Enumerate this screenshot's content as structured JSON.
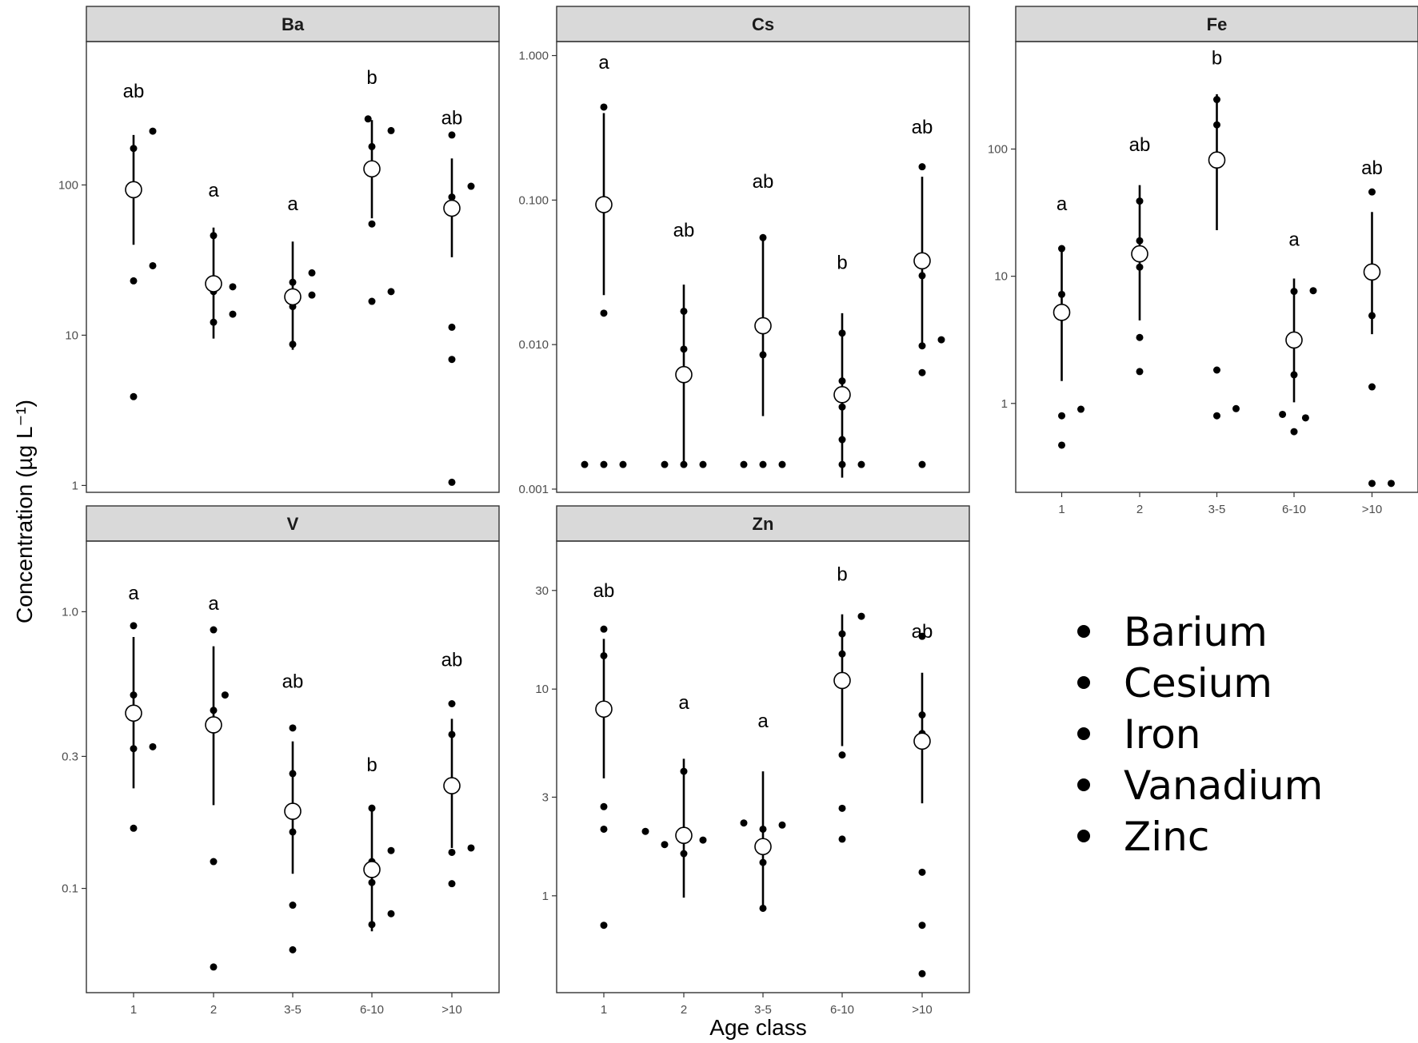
{
  "chart_data": {
    "type": "scatter",
    "layout": "faceted",
    "ylabel": "Concentration (µg L⁻¹)",
    "xlabel": "Age class",
    "yscale": "log",
    "categories": [
      "1",
      "2",
      "3-5",
      "6-10",
      ">10"
    ],
    "legend": {
      "placement": "bottom-right",
      "entries": [
        "Barium",
        "Cesium",
        "Iron",
        "Vanadium",
        "Zinc"
      ]
    },
    "panels": [
      {
        "name": "Ba",
        "ylim": [
          0.9,
          900
        ],
        "yticks": [
          {
            "v": 1,
            "label": "1"
          },
          {
            "v": 10,
            "label": "10"
          },
          {
            "v": 100,
            "label": "100"
          }
        ],
        "groups": [
          {
            "cat": "1",
            "letter": "ab",
            "letter_y": 420,
            "mean": 93,
            "ci": [
              40,
              215
            ],
            "points": [
              {
                "v": 175,
                "dx": 0
              },
              {
                "v": 23,
                "dx": 0
              },
              {
                "v": 3.9,
                "dx": 0
              },
              {
                "v": 228,
                "dx": 1
              },
              {
                "v": 29,
                "dx": 1
              }
            ]
          },
          {
            "cat": "2",
            "letter": "a",
            "letter_y": 92,
            "mean": 22,
            "ci": [
              9.5,
              52
            ],
            "points": [
              {
                "v": 46,
                "dx": 0
              },
              {
                "v": 19.5,
                "dx": 0
              },
              {
                "v": 12.2,
                "dx": 0
              },
              {
                "v": 21,
                "dx": 1
              },
              {
                "v": 13.8,
                "dx": 1
              }
            ]
          },
          {
            "cat": "3-5",
            "letter": "a",
            "letter_y": 75,
            "mean": 18,
            "ci": [
              8,
              42
            ],
            "points": [
              {
                "v": 22.5,
                "dx": 0
              },
              {
                "v": 15.5,
                "dx": 0
              },
              {
                "v": 8.7,
                "dx": 0
              },
              {
                "v": 26,
                "dx": 1
              },
              {
                "v": 18.5,
                "dx": 1
              }
            ]
          },
          {
            "cat": "6-10",
            "letter": "b",
            "letter_y": 520,
            "mean": 128,
            "ci": [
              60,
              270
            ],
            "points": [
              {
                "v": 275,
                "dx": -0.2
              },
              {
                "v": 180,
                "dx": 0
              },
              {
                "v": 55,
                "dx": 0
              },
              {
                "v": 16.8,
                "dx": 0
              },
              {
                "v": 230,
                "dx": 1
              },
              {
                "v": 19.5,
                "dx": 1
              }
            ]
          },
          {
            "cat": ">10",
            "letter": "ab",
            "letter_y": 280,
            "mean": 70,
            "ci": [
              33,
              150
            ],
            "points": [
              {
                "v": 215,
                "dx": 0
              },
              {
                "v": 83,
                "dx": 0
              },
              {
                "v": 11.3,
                "dx": 0
              },
              {
                "v": 6.9,
                "dx": 0
              },
              {
                "v": 1.05,
                "dx": 0
              },
              {
                "v": 98,
                "dx": 1
              }
            ]
          }
        ]
      },
      {
        "name": "Cs",
        "ylim": [
          0.00095,
          1.25
        ],
        "yticks": [
          {
            "v": 0.001,
            "label": "0.001"
          },
          {
            "v": 0.01,
            "label": "0.010"
          },
          {
            "v": 0.1,
            "label": "0.100"
          },
          {
            "v": 1,
            "label": "1.000"
          }
        ],
        "groups": [
          {
            "cat": "1",
            "letter": "a",
            "letter_y": 0.9,
            "mean": 0.093,
            "ci": [
              0.022,
              0.4
            ],
            "points": [
              {
                "v": 0.44,
                "dx": 0
              },
              {
                "v": 0.0165,
                "dx": 0
              },
              {
                "v": 0.00148,
                "dx": 0
              },
              {
                "v": 0.00148,
                "dx": -1
              },
              {
                "v": 0.00148,
                "dx": 1
              }
            ]
          },
          {
            "cat": "2",
            "letter": "ab",
            "letter_y": 0.062,
            "mean": 0.0062,
            "ci": [
              0.00148,
              0.026
            ],
            "points": [
              {
                "v": 0.017,
                "dx": 0
              },
              {
                "v": 0.0093,
                "dx": 0
              },
              {
                "v": 0.00148,
                "dx": 0
              },
              {
                "v": 0.00148,
                "dx": -1
              },
              {
                "v": 0.00148,
                "dx": 1
              }
            ]
          },
          {
            "cat": "3-5",
            "letter": "ab",
            "letter_y": 0.135,
            "mean": 0.0135,
            "ci": [
              0.0032,
              0.056
            ],
            "points": [
              {
                "v": 0.055,
                "dx": 0
              },
              {
                "v": 0.0085,
                "dx": 0
              },
              {
                "v": 0.00148,
                "dx": 0
              },
              {
                "v": 0.00148,
                "dx": -1
              },
              {
                "v": 0.00148,
                "dx": 1
              }
            ]
          },
          {
            "cat": "6-10",
            "letter": "b",
            "letter_y": 0.037,
            "mean": 0.0045,
            "ci": [
              0.0012,
              0.0165
            ],
            "points": [
              {
                "v": 0.012,
                "dx": 0
              },
              {
                "v": 0.0056,
                "dx": 0
              },
              {
                "v": 0.0037,
                "dx": 0
              },
              {
                "v": 0.0022,
                "dx": 0
              },
              {
                "v": 0.00148,
                "dx": 0
              },
              {
                "v": 0.00148,
                "dx": 1
              }
            ]
          },
          {
            "cat": ">10",
            "letter": "ab",
            "letter_y": 0.32,
            "mean": 0.038,
            "ci": [
              0.01,
              0.145
            ],
            "points": [
              {
                "v": 0.17,
                "dx": 0
              },
              {
                "v": 0.03,
                "dx": 0
              },
              {
                "v": 0.0098,
                "dx": 0
              },
              {
                "v": 0.0064,
                "dx": 0
              },
              {
                "v": 0.00148,
                "dx": 0
              },
              {
                "v": 0.0108,
                "dx": 1
              }
            ]
          }
        ]
      },
      {
        "name": "Fe",
        "ylim": [
          0.2,
          700
        ],
        "yticks": [
          {
            "v": 1,
            "label": "1"
          },
          {
            "v": 10,
            "label": "10"
          },
          {
            "v": 100,
            "label": "100"
          }
        ],
        "groups": [
          {
            "cat": "1",
            "letter": "a",
            "letter_y": 37,
            "mean": 5.2,
            "ci": [
              1.5,
              16.5
            ],
            "points": [
              {
                "v": 16.5,
                "dx": 0
              },
              {
                "v": 7.2,
                "dx": 0
              },
              {
                "v": 0.8,
                "dx": 0
              },
              {
                "v": 0.47,
                "dx": 0
              },
              {
                "v": 0.9,
                "dx": 1
              }
            ]
          },
          {
            "cat": "2",
            "letter": "ab",
            "letter_y": 108,
            "mean": 15,
            "ci": [
              4.5,
              52
            ],
            "points": [
              {
                "v": 39,
                "dx": 0
              },
              {
                "v": 19,
                "dx": 0
              },
              {
                "v": 11.8,
                "dx": 0
              },
              {
                "v": 3.3,
                "dx": 0
              },
              {
                "v": 1.78,
                "dx": 0
              }
            ]
          },
          {
            "cat": "3-5",
            "letter": "b",
            "letter_y": 520,
            "mean": 82,
            "ci": [
              23,
              270
            ],
            "points": [
              {
                "v": 245,
                "dx": 0
              },
              {
                "v": 155,
                "dx": 0
              },
              {
                "v": 1.83,
                "dx": 0
              },
              {
                "v": 0.8,
                "dx": 0
              },
              {
                "v": 0.91,
                "dx": 1
              }
            ]
          },
          {
            "cat": "6-10",
            "letter": "a",
            "letter_y": 19.5,
            "mean": 3.15,
            "ci": [
              1.02,
              9.6
            ],
            "points": [
              {
                "v": 7.6,
                "dx": 0
              },
              {
                "v": 1.68,
                "dx": 0
              },
              {
                "v": 0.6,
                "dx": 0
              },
              {
                "v": 0.82,
                "dx": -0.6
              },
              {
                "v": 0.77,
                "dx": 0.6
              },
              {
                "v": 7.7,
                "dx": 1
              }
            ]
          },
          {
            "cat": ">10",
            "letter": "ab",
            "letter_y": 71,
            "mean": 10.8,
            "ci": [
              3.5,
              32
            ],
            "points": [
              {
                "v": 46,
                "dx": 0
              },
              {
                "v": 11,
                "dx": 0
              },
              {
                "v": 4.9,
                "dx": 0
              },
              {
                "v": 1.35,
                "dx": 0
              },
              {
                "v": 0.235,
                "dx": 0
              },
              {
                "v": 0.235,
                "dx": 1
              }
            ]
          }
        ]
      },
      {
        "name": "V",
        "ylim": [
          0.042,
          1.8
        ],
        "yticks": [
          {
            "v": 0.1,
            "label": "0.1"
          },
          {
            "v": 0.3,
            "label": "0.3"
          },
          {
            "v": 1,
            "label": "1.0"
          }
        ],
        "groups": [
          {
            "cat": "1",
            "letter": "a",
            "letter_y": 1.17,
            "mean": 0.43,
            "ci": [
              0.23,
              0.81
            ],
            "points": [
              {
                "v": 0.89,
                "dx": 0
              },
              {
                "v": 0.5,
                "dx": 0
              },
              {
                "v": 0.32,
                "dx": 0
              },
              {
                "v": 0.165,
                "dx": 0
              },
              {
                "v": 0.325,
                "dx": 1
              }
            ]
          },
          {
            "cat": "2",
            "letter": "a",
            "letter_y": 1.07,
            "mean": 0.39,
            "ci": [
              0.2,
              0.75
            ],
            "points": [
              {
                "v": 0.86,
                "dx": 0
              },
              {
                "v": 0.44,
                "dx": 0
              },
              {
                "v": 0.125,
                "dx": 0
              },
              {
                "v": 0.052,
                "dx": 0
              },
              {
                "v": 0.5,
                "dx": 0.6
              }
            ]
          },
          {
            "cat": "3-5",
            "letter": "ab",
            "letter_y": 0.56,
            "mean": 0.19,
            "ci": [
              0.113,
              0.34
            ],
            "points": [
              {
                "v": 0.38,
                "dx": 0
              },
              {
                "v": 0.26,
                "dx": 0
              },
              {
                "v": 0.16,
                "dx": 0
              },
              {
                "v": 0.087,
                "dx": 0
              },
              {
                "v": 0.06,
                "dx": 0
              }
            ]
          },
          {
            "cat": "6-10",
            "letter": "b",
            "letter_y": 0.28,
            "mean": 0.117,
            "ci": [
              0.07,
              0.2
            ],
            "points": [
              {
                "v": 0.195,
                "dx": 0
              },
              {
                "v": 0.125,
                "dx": 0
              },
              {
                "v": 0.105,
                "dx": 0
              },
              {
                "v": 0.074,
                "dx": 0
              },
              {
                "v": 0.137,
                "dx": 1
              },
              {
                "v": 0.081,
                "dx": 1
              }
            ]
          },
          {
            "cat": ">10",
            "letter": "ab",
            "letter_y": 0.67,
            "mean": 0.235,
            "ci": [
              0.14,
              0.41
            ],
            "points": [
              {
                "v": 0.465,
                "dx": 0
              },
              {
                "v": 0.36,
                "dx": 0
              },
              {
                "v": 0.24,
                "dx": 0
              },
              {
                "v": 0.135,
                "dx": 0
              },
              {
                "v": 0.104,
                "dx": 0
              },
              {
                "v": 0.14,
                "dx": 1
              }
            ]
          }
        ]
      },
      {
        "name": "Zn",
        "ylim": [
          0.34,
          52
        ],
        "yticks": [
          {
            "v": 1,
            "label": "1"
          },
          {
            "v": 3,
            "label": "3"
          },
          {
            "v": 10,
            "label": "10"
          },
          {
            "v": 30,
            "label": "30"
          }
        ],
        "groups": [
          {
            "cat": "1",
            "letter": "ab",
            "letter_y": 30,
            "mean": 8,
            "ci": [
              3.7,
              17.5
            ],
            "points": [
              {
                "v": 19.5,
                "dx": 0
              },
              {
                "v": 14.5,
                "dx": 0
              },
              {
                "v": 2.7,
                "dx": 0
              },
              {
                "v": 2.1,
                "dx": 0
              },
              {
                "v": 0.72,
                "dx": 0
              }
            ]
          },
          {
            "cat": "2",
            "letter": "a",
            "letter_y": 8.6,
            "mean": 1.96,
            "ci": [
              0.98,
              4.6
            ],
            "points": [
              {
                "v": 4,
                "dx": 0
              },
              {
                "v": 1.6,
                "dx": 0
              },
              {
                "v": 2.05,
                "dx": -2
              },
              {
                "v": 1.77,
                "dx": -1
              },
              {
                "v": 1.86,
                "dx": 1
              }
            ]
          },
          {
            "cat": "3-5",
            "letter": "a",
            "letter_y": 7,
            "mean": 1.73,
            "ci": [
              0.84,
              4
            ],
            "points": [
              {
                "v": 2.1,
                "dx": 0
              },
              {
                "v": 1.45,
                "dx": 0
              },
              {
                "v": 0.87,
                "dx": 0
              },
              {
                "v": 2.25,
                "dx": -1
              },
              {
                "v": 2.2,
                "dx": 1
              }
            ]
          },
          {
            "cat": "6-10",
            "letter": "b",
            "letter_y": 36,
            "mean": 11,
            "ci": [
              5.3,
              23
            ],
            "points": [
              {
                "v": 18.5,
                "dx": 0
              },
              {
                "v": 14.8,
                "dx": 0
              },
              {
                "v": 4.8,
                "dx": 0
              },
              {
                "v": 2.65,
                "dx": 0
              },
              {
                "v": 1.88,
                "dx": 0
              },
              {
                "v": 22.5,
                "dx": 1
              }
            ]
          },
          {
            "cat": ">10",
            "letter": "ab",
            "letter_y": 19,
            "mean": 5.6,
            "ci": [
              2.8,
              12
            ],
            "points": [
              {
                "v": 18,
                "dx": 0
              },
              {
                "v": 7.5,
                "dx": 0
              },
              {
                "v": 6.1,
                "dx": 0
              },
              {
                "v": 1.3,
                "dx": 0
              },
              {
                "v": 0.72,
                "dx": 0
              },
              {
                "v": 0.42,
                "dx": 0
              }
            ]
          }
        ]
      }
    ]
  }
}
